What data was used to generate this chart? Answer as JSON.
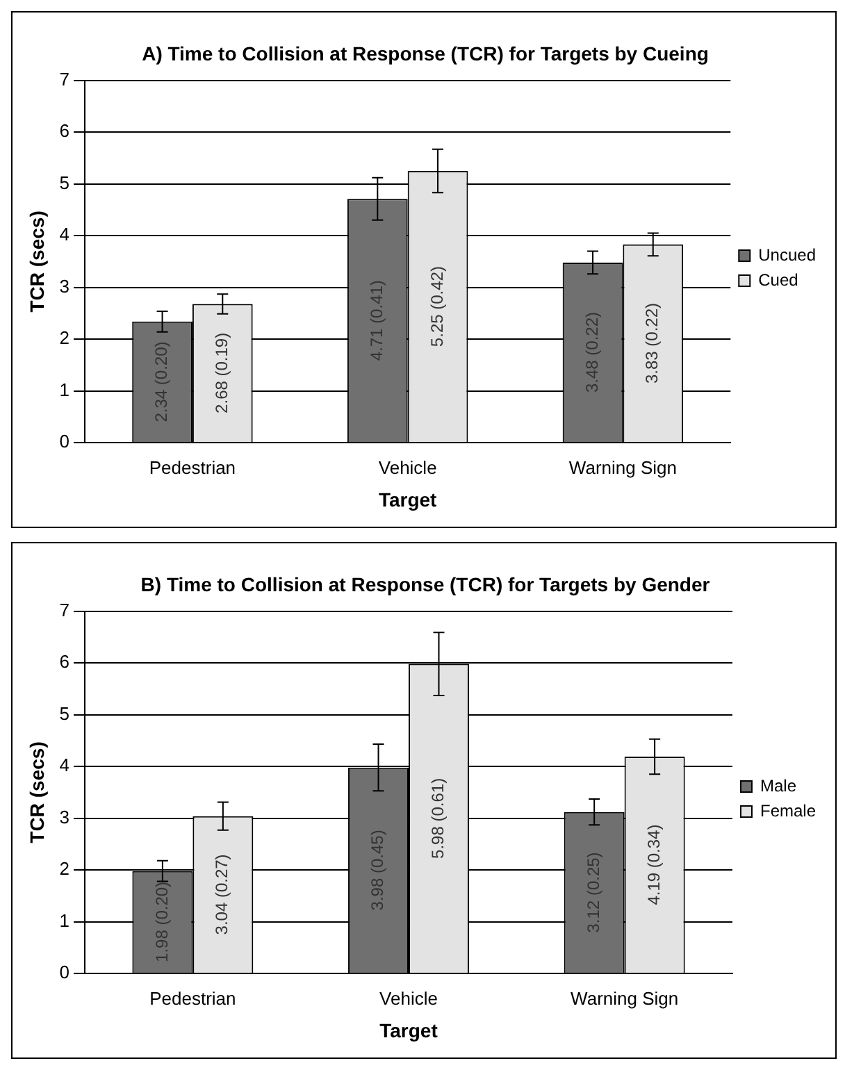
{
  "chart_data": [
    {
      "type": "bar",
      "title": "A) Time to Collision at Response (TCR) for Targets by Cueing",
      "xlabel": "Target",
      "ylabel": "TCR (secs)",
      "categories": [
        "Pedestrian",
        "Vehicle",
        "Warning Sign"
      ],
      "series": [
        {
          "name": "Uncued",
          "color": "#707070",
          "values": [
            2.34,
            4.71,
            3.48
          ],
          "errors": [
            0.2,
            0.41,
            0.22
          ],
          "value_labels": [
            "2.34 (0.20)",
            "4.71 (0.41)",
            "3.48 (0.22)"
          ]
        },
        {
          "name": "Cued",
          "color": "#e3e3e3",
          "values": [
            2.68,
            5.25,
            3.83
          ],
          "errors": [
            0.19,
            0.42,
            0.22
          ],
          "value_labels": [
            "2.68 (0.19)",
            "5.25 (0.42)",
            "3.83 (0.22)"
          ]
        }
      ],
      "ylim": [
        0,
        7
      ],
      "yticks": [
        0,
        1,
        2,
        3,
        4,
        5,
        6,
        7
      ],
      "grid": "y",
      "legend": "right"
    },
    {
      "type": "bar",
      "title": "B) Time to Collision at Response (TCR) for Targets by Gender",
      "xlabel": "Target",
      "ylabel": "TCR (secs)",
      "categories": [
        "Pedestrian",
        "Vehicle",
        "Warning Sign"
      ],
      "series": [
        {
          "name": "Male",
          "color": "#707070",
          "values": [
            1.98,
            3.98,
            3.12
          ],
          "errors": [
            0.2,
            0.45,
            0.25
          ],
          "value_labels": [
            "1.98 (0.20)",
            "3.98 (0.45)",
            "3.12 (0.25)"
          ]
        },
        {
          "name": "Female",
          "color": "#e3e3e3",
          "values": [
            3.04,
            5.98,
            4.19
          ],
          "errors": [
            0.27,
            0.61,
            0.34
          ],
          "value_labels": [
            "3.04 (0.27)",
            "5.98 (0.61)",
            "4.19 (0.34)"
          ]
        }
      ],
      "ylim": [
        0,
        7
      ],
      "yticks": [
        0,
        1,
        2,
        3,
        4,
        5,
        6,
        7
      ],
      "grid": "y",
      "legend": "right"
    }
  ]
}
